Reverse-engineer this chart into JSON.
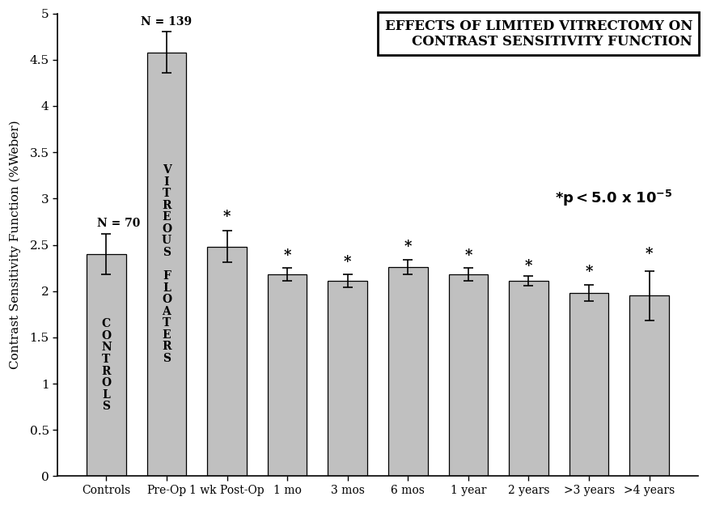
{
  "categories": [
    "Controls",
    "Pre-Op",
    "1 wk Post-Op",
    "1 mo",
    "3 mos",
    "6 mos",
    "1 year",
    "2 years",
    ">3 years",
    ">4 years"
  ],
  "values": [
    2.4,
    4.58,
    2.48,
    2.18,
    2.11,
    2.26,
    2.18,
    2.11,
    1.98,
    1.95
  ],
  "errors_upper": [
    0.22,
    0.22,
    0.17,
    0.07,
    0.07,
    0.08,
    0.07,
    0.05,
    0.09,
    0.27
  ],
  "errors_lower": [
    0.22,
    0.22,
    0.17,
    0.07,
    0.07,
    0.08,
    0.07,
    0.05,
    0.09,
    0.27
  ],
  "bar_color": "#c0c0c0",
  "bar_edgecolor": "#000000",
  "title_line1": "EFFECTS OF LIMITED VITRECTOMY ON",
  "title_line2": "CONTRAST SENSITIVITY FUNCTION",
  "ylabel": "Contrast Sensitivity Function (%Weber)",
  "ylim": [
    0,
    5.0
  ],
  "yticks": [
    0,
    0.5,
    1.0,
    1.5,
    2.0,
    2.5,
    3.0,
    3.5,
    4.0,
    4.5,
    5.0
  ],
  "bar_text_controls": "C\nO\nN\nT\nR\nO\nL\nS",
  "bar_text_vitreous": "V\nI\nT\nR\nE\nO\nU\nS\n \nF\nL\nO\nA\nT\nE\nR\nS",
  "n_labels": [
    "N = 70",
    "N = 139"
  ],
  "n_labels_idx": [
    0,
    1
  ],
  "significance_marker": "*",
  "sig_marker_idx": [
    2,
    3,
    4,
    5,
    6,
    7,
    8,
    9
  ],
  "sig_note": "* p < 5.0 x 10",
  "sig_exp": "-5",
  "background_color": "#ffffff",
  "figsize": [
    8.74,
    6.24
  ],
  "dpi": 100
}
